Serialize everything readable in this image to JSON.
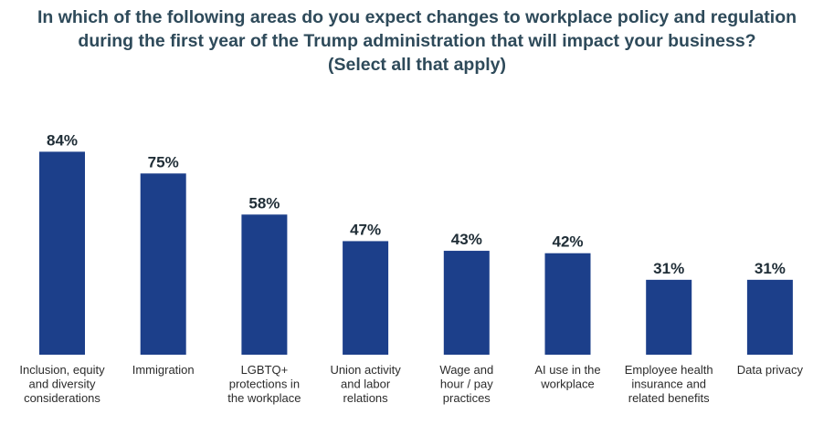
{
  "chart_data": {
    "type": "bar",
    "title": [
      "In which of the following areas do you expect changes to workplace policy and regulation",
      "during the first year of the Trump administration that will impact your business?",
      "(Select all that apply)"
    ],
    "categories": [
      [
        "Inclusion, equity",
        "and diversity",
        "considerations"
      ],
      [
        "Immigration"
      ],
      [
        "LGBTQ+",
        "protections in",
        "the workplace"
      ],
      [
        "Union activity",
        "and labor",
        "relations"
      ],
      [
        "Wage and",
        "hour / pay",
        "practices"
      ],
      [
        "AI use in the",
        "workplace"
      ],
      [
        "Employee health",
        "insurance and",
        "related benefits"
      ],
      [
        "Data privacy"
      ]
    ],
    "values": [
      84,
      75,
      58,
      47,
      43,
      42,
      31,
      31
    ],
    "value_labels": [
      "84%",
      "75%",
      "58%",
      "47%",
      "43%",
      "42%",
      "31%",
      "31%"
    ],
    "ylim": [
      0,
      100
    ],
    "grid": false,
    "legend": "none",
    "bar_color": "#1c3f8a"
  }
}
